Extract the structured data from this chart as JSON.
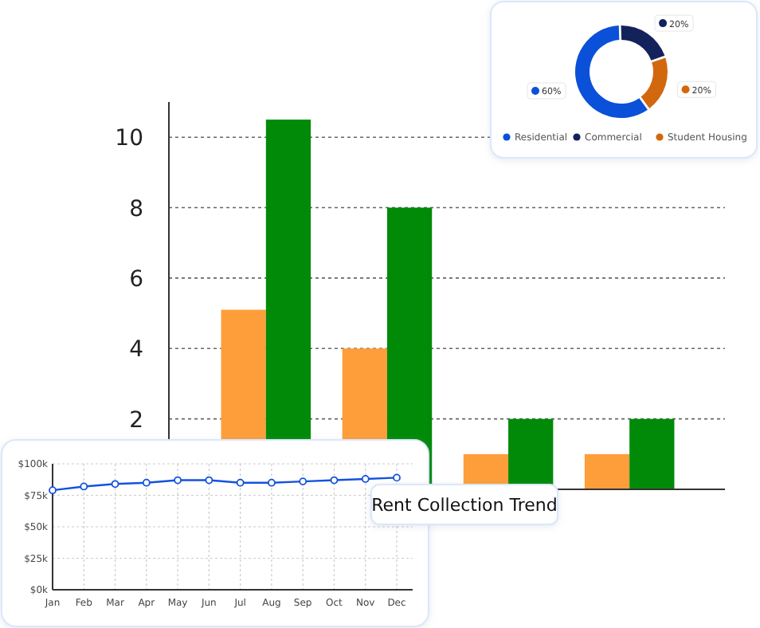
{
  "chart_data": [
    {
      "type": "donut",
      "categories": [
        "Residential",
        "Commercial",
        "Student Housing"
      ],
      "values": [
        60,
        20,
        20
      ],
      "colors": [
        "#0b50d8",
        "#14225c",
        "#d2680e"
      ],
      "value_labels": [
        "60%",
        "20%",
        "20%"
      ],
      "legend": "bottom"
    },
    {
      "type": "bar",
      "categories": [
        null,
        null,
        null,
        null
      ],
      "series": [
        {
          "color": "#fd9e3a",
          "values": [
            5.1,
            4,
            1,
            1
          ]
        },
        {
          "color": "#008a08",
          "values": [
            10.5,
            8,
            2,
            2
          ]
        }
      ],
      "ylim": [
        0,
        11
      ],
      "yticks": [
        2,
        4,
        6,
        8,
        10
      ],
      "grid": "y"
    },
    {
      "type": "line",
      "title": "Rent Collection Trend",
      "categories": [
        "Jan",
        "Feb",
        "Mar",
        "Apr",
        "May",
        "Jun",
        "Jul",
        "Aug",
        "Sep",
        "Oct",
        "Nov",
        "Dec"
      ],
      "series": [
        {
          "color": "#1452e0",
          "values": [
            79,
            82,
            84,
            85,
            87,
            87,
            85,
            85,
            86,
            87,
            88,
            89
          ]
        }
      ],
      "ylim": [
        0,
        100
      ],
      "yticks": [
        {
          "value": 0,
          "label": "$0k"
        },
        {
          "value": 25,
          "label": "$25k"
        },
        {
          "value": 50,
          "label": "$50k"
        },
        {
          "value": 75,
          "label": "$75k"
        },
        {
          "value": 100,
          "label": "$100k"
        }
      ],
      "grid": true,
      "marker": "circle"
    }
  ]
}
